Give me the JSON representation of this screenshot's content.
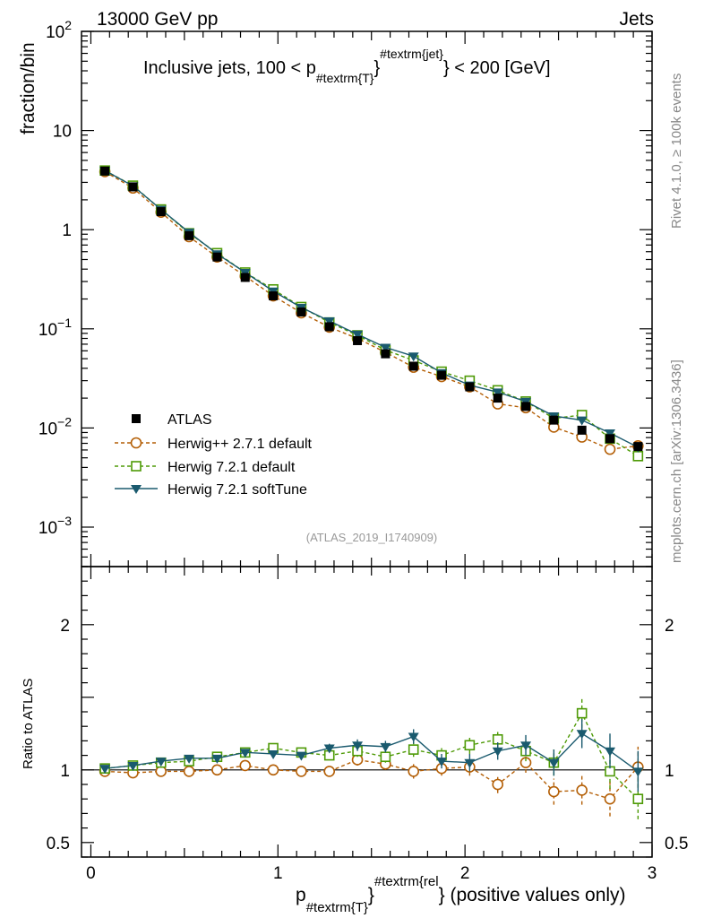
{
  "header": {
    "left": "13000 GeV pp",
    "right": "Jets"
  },
  "side_labels": {
    "rivet": "Rivet 4.1.0, ≥ 100k events",
    "mcplots": "mcplots.cern.ch [arXiv:1306.3436]"
  },
  "analysis_id": "(ATLAS_2019_I1740909)",
  "chart_data": {
    "type": "line",
    "title": "Inclusive jets, 100 < p_{#textrm{T}}^{#textrm{jet}} < 200 [GeV]",
    "title_main": "Inclusive jets, 100 < p",
    "title_sub": "#textrm{T}",
    "title_sup": "#textrm{jet}",
    "title_end": "} < 200 [GeV]",
    "title_brace": "}",
    "xlabel": "p_{#textrm{T}}^{#textrm{rel}} (positive values only)",
    "xlabel_main": "p",
    "xlabel_sub": "#textrm{T}",
    "xlabel_brace": "}",
    "xlabel_sup": "#textrm{rel",
    "xlabel_end": "} (positive values only)",
    "ylabel": "fraction/bin",
    "ratio_ylabel": "Ratio to ATLAS",
    "xlim": [
      -0.05,
      3.0
    ],
    "ylim": [
      0.0004,
      100
    ],
    "ratio_ylim": [
      0.4,
      2.4
    ],
    "y_scale": "log",
    "x_ticks": [
      "0",
      "1",
      "2",
      "3"
    ],
    "y_ticks": [
      {
        "base": "10",
        "exp": "2"
      },
      {
        "base": "10",
        "exp": ""
      },
      {
        "base": "1",
        "exp": ""
      },
      {
        "base": "10",
        "exp": "−1"
      },
      {
        "base": "10",
        "exp": "−2"
      },
      {
        "base": "10",
        "exp": "−3"
      }
    ],
    "ratio_ticks": [
      "2",
      "1",
      "0.5"
    ],
    "legend_position": "lower-left",
    "x": [
      0.075,
      0.225,
      0.375,
      0.525,
      0.675,
      0.825,
      0.975,
      1.125,
      1.275,
      1.425,
      1.575,
      1.725,
      1.875,
      2.025,
      2.175,
      2.325,
      2.475,
      2.625,
      2.775,
      2.925
    ],
    "series": [
      {
        "name": "ATLAS",
        "marker": "filled-square",
        "color": "#000000",
        "values": [
          3.9,
          2.7,
          1.52,
          0.87,
          0.53,
          0.33,
          0.215,
          0.148,
          0.105,
          0.076,
          0.056,
          0.042,
          0.034,
          0.026,
          0.02,
          0.0165,
          0.012,
          0.0095,
          0.0078,
          0.0065
        ],
        "ratio": [
          1,
          1,
          1,
          1,
          1,
          1,
          1,
          1,
          1,
          1,
          1,
          1,
          1,
          1,
          1,
          1,
          1,
          1,
          1,
          1
        ]
      },
      {
        "name": "Herwig++ 2.7.1 default",
        "marker": "open-circle",
        "color": "#b45f06",
        "values": [
          3.85,
          2.63,
          1.5,
          0.85,
          0.53,
          0.34,
          0.215,
          0.145,
          0.104,
          0.08,
          0.058,
          0.041,
          0.033,
          0.026,
          0.0175,
          0.016,
          0.0102,
          0.0081,
          0.0061,
          0.0066
        ],
        "ratio": [
          0.99,
          0.98,
          0.99,
          0.99,
          1.0,
          1.03,
          1.0,
          0.99,
          0.99,
          1.07,
          1.04,
          0.99,
          1.01,
          1.02,
          0.9,
          1.05,
          0.85,
          0.86,
          0.8,
          1.02
        ],
        "ratio_err": [
          0.01,
          0.01,
          0.01,
          0.01,
          0.01,
          0.02,
          0.02,
          0.02,
          0.03,
          0.04,
          0.04,
          0.05,
          0.05,
          0.06,
          0.06,
          0.07,
          0.09,
          0.1,
          0.12,
          0.14
        ]
      },
      {
        "name": "Herwig 7.2.1 default",
        "marker": "open-square",
        "color": "#4e9a06",
        "values": [
          3.95,
          2.78,
          1.6,
          0.92,
          0.58,
          0.37,
          0.25,
          0.166,
          0.116,
          0.086,
          0.061,
          0.048,
          0.037,
          0.03,
          0.024,
          0.0185,
          0.0125,
          0.0135,
          0.0078,
          0.0052
        ],
        "ratio": [
          1.01,
          1.03,
          1.05,
          1.06,
          1.09,
          1.12,
          1.15,
          1.12,
          1.1,
          1.13,
          1.09,
          1.14,
          1.1,
          1.17,
          1.21,
          1.13,
          1.05,
          1.39,
          0.99,
          0.8
        ],
        "ratio_err": [
          0.01,
          0.01,
          0.01,
          0.01,
          0.01,
          0.02,
          0.02,
          0.02,
          0.03,
          0.04,
          0.04,
          0.05,
          0.05,
          0.06,
          0.06,
          0.07,
          0.09,
          0.1,
          0.12,
          0.14
        ]
      },
      {
        "name": "Herwig 7.2.1 softTune",
        "marker": "filled-down-triangle",
        "color": "#1a5a6e",
        "values": [
          3.95,
          2.76,
          1.6,
          0.94,
          0.57,
          0.37,
          0.24,
          0.164,
          0.12,
          0.088,
          0.065,
          0.053,
          0.036,
          0.027,
          0.023,
          0.0185,
          0.0132,
          0.012,
          0.0089,
          0.0064
        ],
        "ratio": [
          1.01,
          1.03,
          1.06,
          1.08,
          1.08,
          1.12,
          1.11,
          1.1,
          1.15,
          1.17,
          1.16,
          1.23,
          1.06,
          1.05,
          1.13,
          1.17,
          1.05,
          1.25,
          1.13,
          0.99
        ],
        "ratio_err": [
          0.01,
          0.01,
          0.01,
          0.01,
          0.01,
          0.02,
          0.02,
          0.02,
          0.03,
          0.04,
          0.04,
          0.05,
          0.05,
          0.06,
          0.06,
          0.07,
          0.09,
          0.1,
          0.12,
          0.14
        ]
      }
    ]
  }
}
